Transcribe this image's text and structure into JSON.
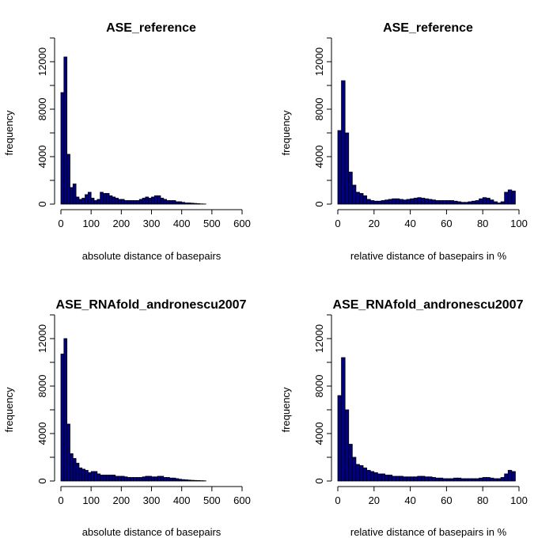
{
  "chart_data": [
    {
      "type": "bar",
      "title": "ASE_reference",
      "xlabel": "absolute distance of basepairs",
      "ylabel": "frequency",
      "xlim": [
        0,
        600
      ],
      "ylim": [
        0,
        14000
      ],
      "xticks": [
        "0",
        "100",
        "200",
        "300",
        "400",
        "500",
        "600"
      ],
      "yticks": [
        "0",
        "4000",
        "8000",
        "12000"
      ],
      "bin_width": 10,
      "x": [
        0,
        10,
        20,
        30,
        40,
        50,
        60,
        70,
        80,
        90,
        100,
        110,
        120,
        130,
        140,
        150,
        160,
        170,
        180,
        190,
        200,
        210,
        220,
        230,
        240,
        250,
        260,
        270,
        280,
        290,
        300,
        310,
        320,
        330,
        340,
        350,
        360,
        370,
        380,
        390,
        400,
        410,
        420,
        430,
        440,
        450,
        460,
        470
      ],
      "values": [
        9400,
        12400,
        4200,
        1400,
        1700,
        600,
        400,
        500,
        800,
        1000,
        500,
        300,
        400,
        1000,
        900,
        900,
        700,
        600,
        500,
        400,
        400,
        300,
        300,
        300,
        300,
        300,
        400,
        500,
        600,
        500,
        600,
        700,
        700,
        500,
        400,
        300,
        300,
        300,
        200,
        200,
        150,
        100,
        100,
        80,
        60,
        40,
        20,
        10
      ]
    },
    {
      "type": "bar",
      "title": "ASE_reference",
      "xlabel": "relative distance of basepairs in %",
      "ylabel": "frequency",
      "xlim": [
        0,
        100
      ],
      "ylim": [
        0,
        14000
      ],
      "xticks": [
        "0",
        "20",
        "40",
        "60",
        "80",
        "100"
      ],
      "yticks": [
        "0",
        "4000",
        "8000",
        "12000"
      ],
      "bin_width": 2,
      "x": [
        0,
        2,
        4,
        6,
        8,
        10,
        12,
        14,
        16,
        18,
        20,
        22,
        24,
        26,
        28,
        30,
        32,
        34,
        36,
        38,
        40,
        42,
        44,
        46,
        48,
        50,
        52,
        54,
        56,
        58,
        60,
        62,
        64,
        66,
        68,
        70,
        72,
        74,
        76,
        78,
        80,
        82,
        84,
        86,
        88,
        90,
        92,
        94,
        96,
        98
      ],
      "values": [
        6200,
        10400,
        6000,
        2700,
        1600,
        1000,
        900,
        700,
        400,
        300,
        250,
        250,
        300,
        350,
        400,
        450,
        450,
        400,
        350,
        400,
        450,
        500,
        550,
        500,
        450,
        400,
        350,
        300,
        300,
        300,
        300,
        300,
        250,
        200,
        150,
        150,
        200,
        250,
        300,
        450,
        550,
        500,
        350,
        200,
        100,
        200,
        1000,
        1200,
        1100,
        0
      ]
    },
    {
      "type": "bar",
      "title": "ASE_RNAfold_andronescu2007",
      "xlabel": "absolute distance of basepairs",
      "ylabel": "frequency",
      "xlim": [
        0,
        600
      ],
      "ylim": [
        0,
        14000
      ],
      "xticks": [
        "0",
        "100",
        "200",
        "300",
        "400",
        "500",
        "600"
      ],
      "yticks": [
        "0",
        "4000",
        "8000",
        "12000"
      ],
      "bin_width": 10,
      "x": [
        0,
        10,
        20,
        30,
        40,
        50,
        60,
        70,
        80,
        90,
        100,
        110,
        120,
        130,
        140,
        150,
        160,
        170,
        180,
        190,
        200,
        210,
        220,
        230,
        240,
        250,
        260,
        270,
        280,
        290,
        300,
        310,
        320,
        330,
        340,
        350,
        360,
        370,
        380,
        390,
        400,
        410,
        420,
        430,
        440,
        450,
        460,
        470
      ],
      "values": [
        10700,
        12000,
        4800,
        2300,
        1900,
        1500,
        1100,
        1000,
        900,
        700,
        800,
        800,
        600,
        500,
        500,
        500,
        500,
        500,
        400,
        400,
        400,
        350,
        300,
        300,
        300,
        300,
        300,
        350,
        400,
        400,
        350,
        350,
        400,
        400,
        300,
        300,
        250,
        250,
        200,
        150,
        120,
        100,
        80,
        60,
        50,
        40,
        30,
        20
      ]
    },
    {
      "type": "bar",
      "title": "ASE_RNAfold_andronescu2007",
      "xlabel": "relative distance of basepairs in %",
      "ylabel": "frequency",
      "xlim": [
        0,
        100
      ],
      "ylim": [
        0,
        14000
      ],
      "xticks": [
        "0",
        "20",
        "40",
        "60",
        "80",
        "100"
      ],
      "yticks": [
        "0",
        "4000",
        "8000",
        "12000"
      ],
      "bin_width": 2,
      "x": [
        0,
        2,
        4,
        6,
        8,
        10,
        12,
        14,
        16,
        18,
        20,
        22,
        24,
        26,
        28,
        30,
        32,
        34,
        36,
        38,
        40,
        42,
        44,
        46,
        48,
        50,
        52,
        54,
        56,
        58,
        60,
        62,
        64,
        66,
        68,
        70,
        72,
        74,
        76,
        78,
        80,
        82,
        84,
        86,
        88,
        90,
        92,
        94,
        96,
        98
      ],
      "values": [
        7200,
        10400,
        6000,
        3100,
        2000,
        1400,
        1300,
        1100,
        900,
        800,
        700,
        600,
        600,
        500,
        500,
        400,
        400,
        400,
        350,
        350,
        350,
        350,
        400,
        400,
        350,
        350,
        300,
        250,
        250,
        200,
        200,
        200,
        250,
        250,
        200,
        200,
        200,
        200,
        200,
        250,
        300,
        300,
        250,
        200,
        200,
        300,
        600,
        900,
        800,
        0
      ]
    }
  ]
}
